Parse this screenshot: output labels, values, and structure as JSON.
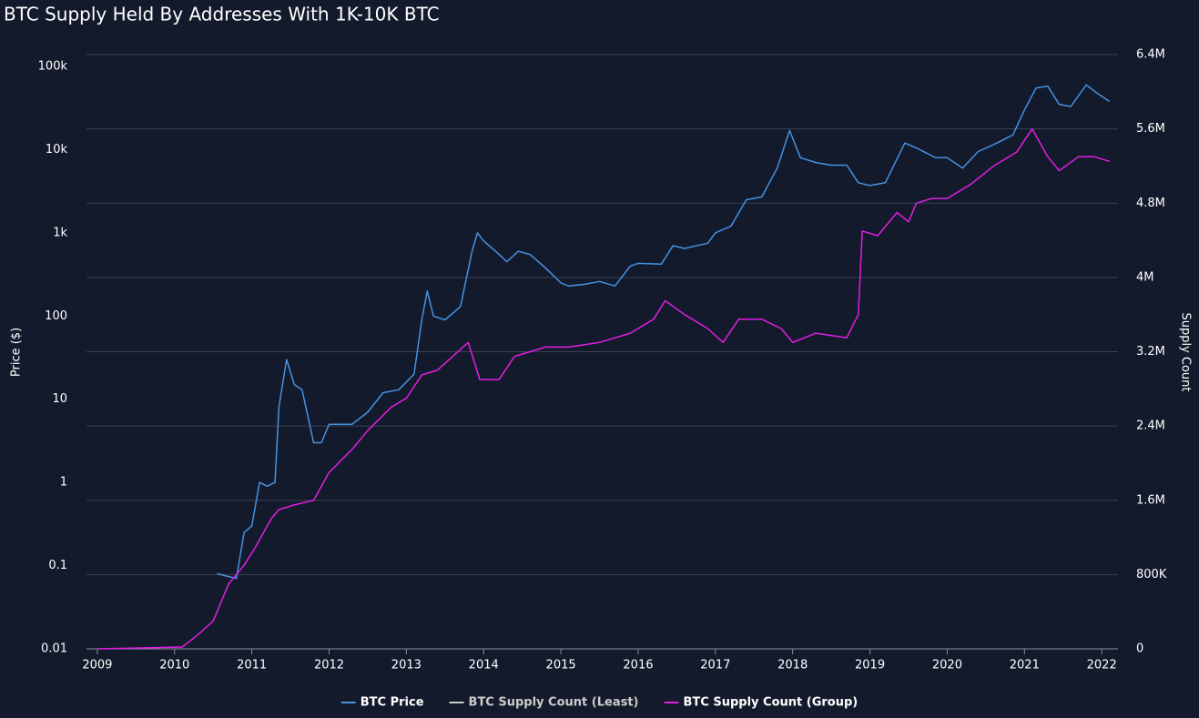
{
  "chart_data": {
    "type": "line",
    "title": "BTC Supply Held By Addresses With 1K-10K BTC",
    "y_label": "Price ($)",
    "y2_label": "Supply Count",
    "xlim": [
      2008.86,
      2022.21
    ],
    "xticks": [
      2009,
      2010,
      2011,
      2012,
      2013,
      2014,
      2015,
      2016,
      2017,
      2018,
      2019,
      2020,
      2021,
      2022
    ],
    "ylim": [
      0.01,
      138700
    ],
    "ylog": true,
    "yticks": [
      0.01,
      0.1,
      1,
      10,
      100,
      {
        "value": 1000,
        "label": "1k"
      },
      {
        "value": 10000,
        "label": "10k"
      },
      {
        "value": 100000,
        "label": "100k"
      }
    ],
    "y2lim": [
      0,
      6400000
    ],
    "y2ticks": [
      0,
      {
        "value": 800000,
        "label": "800K"
      },
      {
        "value": 1600000,
        "label": "1.6M"
      },
      {
        "value": 2400000,
        "label": "2.4M"
      },
      {
        "value": 3200000,
        "label": "3.2M"
      },
      {
        "value": 4000000,
        "label": "4M"
      },
      {
        "value": 4800000,
        "label": "4.8M"
      },
      {
        "value": 5600000,
        "label": "5.6M"
      },
      {
        "value": 6400000,
        "label": "6.4M"
      }
    ],
    "grid": true,
    "grid_axis": "y2",
    "legend": "bottom",
    "series": [
      {
        "name": "BTC Price",
        "color": "#4592e2",
        "axis": "y",
        "x": [
          2010.55,
          2010.8,
          2010.9,
          2011.0,
          2011.1,
          2011.2,
          2011.3,
          2011.35,
          2011.45,
          2011.55,
          2011.65,
          2011.8,
          2011.9,
          2012.0,
          2012.3,
          2012.5,
          2012.7,
          2012.9,
          2013.1,
          2013.2,
          2013.27,
          2013.35,
          2013.5,
          2013.7,
          2013.85,
          2013.92,
          2014.0,
          2014.2,
          2014.3,
          2014.45,
          2014.6,
          2014.8,
          2015.0,
          2015.1,
          2015.3,
          2015.5,
          2015.7,
          2015.9,
          2016.0,
          2016.3,
          2016.45,
          2016.6,
          2016.9,
          2017.0,
          2017.2,
          2017.4,
          2017.6,
          2017.8,
          2017.96,
          2018.1,
          2018.3,
          2018.5,
          2018.7,
          2018.85,
          2019.0,
          2019.2,
          2019.45,
          2019.6,
          2019.85,
          2020.0,
          2020.2,
          2020.4,
          2020.6,
          2020.85,
          2021.0,
          2021.15,
          2021.3,
          2021.45,
          2021.6,
          2021.8,
          2021.95,
          2022.1
        ],
        "values": [
          0.08,
          0.07,
          0.25,
          0.3,
          1.0,
          0.9,
          1.0,
          8,
          30,
          15,
          13,
          3,
          3,
          5,
          5,
          7,
          12,
          13,
          20,
          90,
          200,
          100,
          90,
          130,
          600,
          1000,
          800,
          550,
          450,
          600,
          550,
          380,
          250,
          230,
          240,
          260,
          230,
          400,
          430,
          420,
          700,
          650,
          750,
          1000,
          1200,
          2500,
          2700,
          6000,
          17000,
          8000,
          7000,
          6500,
          6500,
          4000,
          3700,
          4000,
          12000,
          10500,
          8000,
          8000,
          6000,
          9500,
          11500,
          15000,
          30000,
          55000,
          58000,
          35000,
          33000,
          60000,
          47000,
          38000
        ]
      },
      {
        "name": "BTC Supply Count (Least)",
        "color": "#cccccc",
        "axis": "y2"
      },
      {
        "name": "BTC Supply Count (Group)",
        "color": "#e21ee2",
        "axis": "y2",
        "x": [
          2009.0,
          2010.1,
          2010.3,
          2010.5,
          2010.7,
          2010.9,
          2011.05,
          2011.25,
          2011.35,
          2011.55,
          2011.8,
          2012.0,
          2012.3,
          2012.5,
          2012.8,
          2013.0,
          2013.2,
          2013.4,
          2013.6,
          2013.8,
          2013.95,
          2014.2,
          2014.4,
          2014.8,
          2015.1,
          2015.5,
          2015.9,
          2016.2,
          2016.35,
          2016.6,
          2016.9,
          2017.1,
          2017.3,
          2017.6,
          2017.85,
          2018.0,
          2018.3,
          2018.7,
          2018.85,
          2018.9,
          2019.1,
          2019.35,
          2019.5,
          2019.6,
          2019.8,
          2020.0,
          2020.3,
          2020.6,
          2020.9,
          2021.1,
          2021.3,
          2021.45,
          2021.7,
          2021.9,
          2022.1
        ],
        "values": [
          0,
          20000,
          150000,
          300000,
          700000,
          900000,
          1100000,
          1400000,
          1500000,
          1550000,
          1600000,
          1900000,
          2150000,
          2350000,
          2600000,
          2700000,
          2950000,
          3000000,
          3150000,
          3300000,
          2900000,
          2900000,
          3150000,
          3250000,
          3250000,
          3300000,
          3400000,
          3550000,
          3750000,
          3600000,
          3450000,
          3300000,
          3550000,
          3550000,
          3450000,
          3300000,
          3400000,
          3350000,
          3600000,
          4500000,
          4450000,
          4700000,
          4600000,
          4800000,
          4850000,
          4850000,
          5000000,
          5200000,
          5350000,
          5600000,
          5300000,
          5150000,
          5300000,
          5300000,
          5250000
        ]
      }
    ]
  }
}
